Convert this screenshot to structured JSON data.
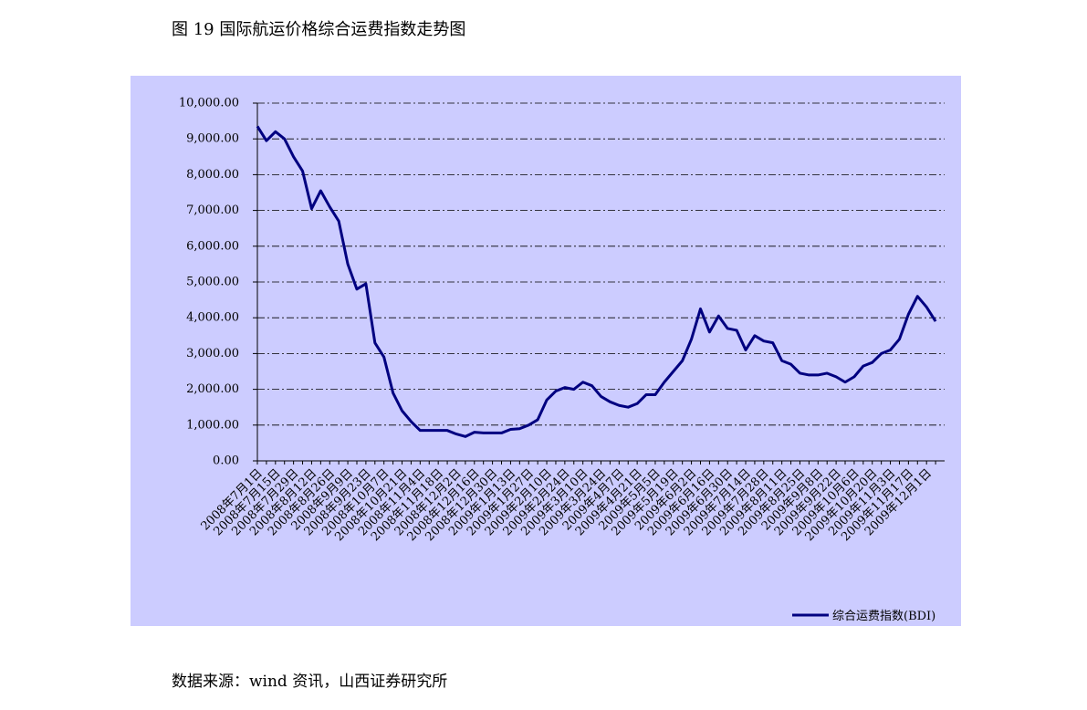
{
  "chart_data": {
    "type": "line",
    "title": "图 19 国际航运价格综合运费指数走势图",
    "source": "数据来源：wind 资讯，山西证券研究所",
    "categories": [
      "2008年7月1日",
      null,
      "2008年7月15日",
      null,
      "2008年7月29日",
      null,
      "2008年8月12日",
      null,
      "2008年8月26日",
      null,
      "2008年9月9日",
      null,
      "2008年9月23日",
      null,
      "2008年10月7日",
      null,
      "2008年10月21日",
      null,
      "2008年11月4日",
      null,
      "2008年11月18日",
      null,
      "2008年12月2日",
      null,
      "2008年12月16日",
      null,
      "2008年12月30日",
      null,
      "2009年1月13日",
      null,
      "2009年1月27日",
      null,
      "2009年2月10日",
      null,
      "2009年2月24日",
      null,
      "2009年3月10日",
      null,
      "2009年3月24日",
      null,
      "2009年4月7日",
      null,
      "2009年4月21日",
      null,
      "2009年5月5日",
      null,
      "2009年5月19日",
      null,
      "2009年6月2日",
      null,
      "2009年6月16日",
      null,
      "2009年6月30日",
      null,
      "2009年7月14日",
      null,
      "2009年7月28日",
      null,
      "2009年8月11日",
      null,
      "2009年8月25日",
      null,
      "2009年9月8日",
      null,
      "2009年9月22日",
      null,
      "2009年10月6日",
      null,
      "2009年10月20日",
      null,
      "2009年11月3日",
      null,
      "2009年11月17日",
      null,
      "2009年12月1日",
      null
    ],
    "series": [
      {
        "name": "综合运费指数(BDI)",
        "color": "#000080",
        "values": [
          9350,
          8950,
          9200,
          9000,
          8500,
          8100,
          7050,
          7550,
          7100,
          6700,
          5500,
          4800,
          4950,
          3300,
          2900,
          1900,
          1400,
          1100,
          850,
          850,
          850,
          850,
          750,
          680,
          800,
          780,
          780,
          780,
          880,
          900,
          1000,
          1150,
          1700,
          1950,
          2050,
          2000,
          2200,
          2100,
          1800,
          1650,
          1550,
          1500,
          1600,
          1850,
          1850,
          2200,
          2500,
          2800,
          3400,
          4250,
          3600,
          4050,
          3700,
          3650,
          3100,
          3500,
          3350,
          3300,
          2800,
          2700,
          2450,
          2400,
          2400,
          2450,
          2350,
          2200,
          2350,
          2650,
          2750,
          3000,
          3100,
          3400,
          4100,
          4600,
          4300,
          3900
        ]
      }
    ],
    "ylim": [
      0,
      10000
    ],
    "yticks": [
      {
        "value": 0,
        "label": "0.00"
      },
      {
        "value": 1000,
        "label": "1,000.00"
      },
      {
        "value": 2000,
        "label": "2,000.00"
      },
      {
        "value": 3000,
        "label": "3,000.00"
      },
      {
        "value": 4000,
        "label": "4,000.00"
      },
      {
        "value": 5000,
        "label": "5,000.00"
      },
      {
        "value": 6000,
        "label": "6,000.00"
      },
      {
        "value": 7000,
        "label": "7,000.00"
      },
      {
        "value": 8000,
        "label": "8,000.00"
      },
      {
        "value": 9000,
        "label": "9,000.00"
      },
      {
        "value": 10000,
        "label": "10,000.00"
      }
    ],
    "grid": true,
    "legend": "bottom-right"
  }
}
